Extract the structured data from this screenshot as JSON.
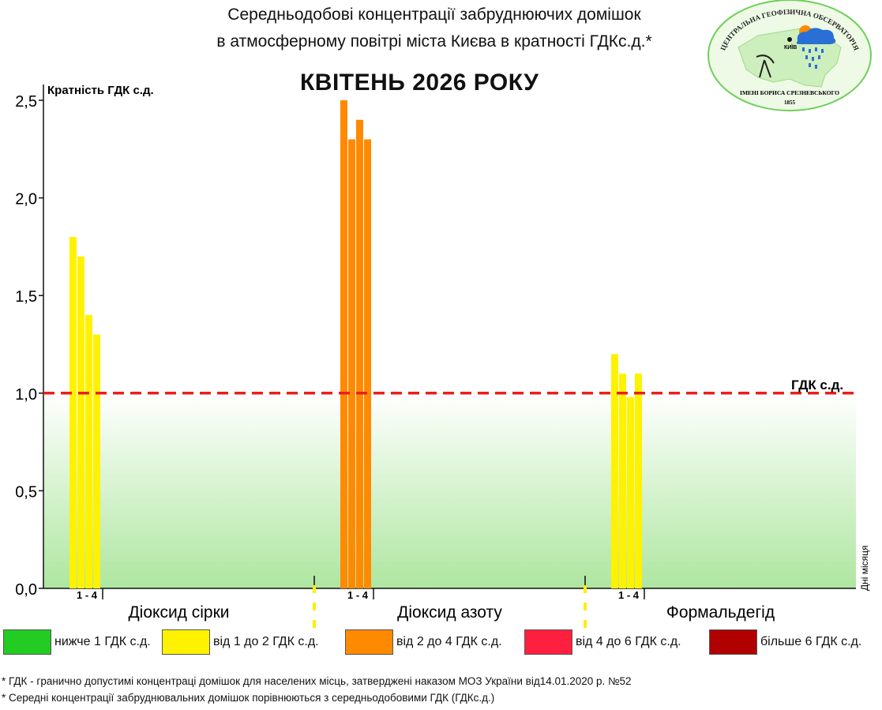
{
  "header": {
    "title_line1": "Середньодобові концентрації забруднюючих домішок",
    "title_line2": "в атмосферному повітрі міста Києва в кратності ГДКс.д.*",
    "month": "КВІТЕНЬ 2026 РОКУ"
  },
  "logo": {
    "arc_text": "ЦЕНТРАЛЬНА ГЕОФІЗИЧНА ОБСЕРВАТОРІЯ",
    "bottom_text": "ІМЕНІ БОРИСА СРЕЗНЕВСЬКОГО",
    "year": "1855",
    "city": "КИЇВ"
  },
  "chart_data": {
    "type": "bar",
    "ylabel": "Кратність ГДК с.д.",
    "xlabel": "Дні місяця",
    "ylim": [
      0,
      2.5
    ],
    "yticks": [
      "0,0",
      "0,5",
      "1,0",
      "1,5",
      "2,0",
      "2,5"
    ],
    "reference_line": {
      "value": 1.0,
      "label": "ГДК с.д.",
      "color": "#e8201c"
    },
    "groups": [
      {
        "name": "Діоксид сірки",
        "day_range_label": "1 - 4",
        "days": [
          1,
          2,
          3,
          4
        ],
        "values": [
          1.8,
          1.7,
          1.4,
          1.3
        ],
        "color": "#fff200"
      },
      {
        "name": "Діоксид азоту",
        "day_range_label": "1 - 4",
        "days": [
          1,
          2,
          3,
          4
        ],
        "values": [
          2.5,
          2.3,
          2.4,
          2.3
        ],
        "color": "#ff8a00"
      },
      {
        "name": "Формальдегід",
        "day_range_label": "1 - 4",
        "days": [
          1,
          2,
          3,
          4
        ],
        "values": [
          1.2,
          1.1,
          0.98,
          1.1
        ],
        "color": "#fff200"
      }
    ]
  },
  "legend": [
    {
      "label": "нижче 1 ГДК с.д.",
      "color": "#22cc22"
    },
    {
      "label": "від 1 до 2 ГДК с.д.",
      "color": "#fff200"
    },
    {
      "label": "від 2 до 4 ГДК с.д.",
      "color": "#ff8a00"
    },
    {
      "label": "від 4 до 6 ГДК с.д.",
      "color": "#ff2040"
    },
    {
      "label": "більше 6 ГДК с.д.",
      "color": "#b00000"
    }
  ],
  "footnotes": {
    "line1": "* ГДК - гранично допустимі концентраці домішок для населених місць, затверджені наказом МОЗ України від14.01.2020 р. №52",
    "line2": "* Середні концентрації забруднювальних домішок порівнюються з середньодобовими  ГДК (ГДКс.д.)"
  }
}
